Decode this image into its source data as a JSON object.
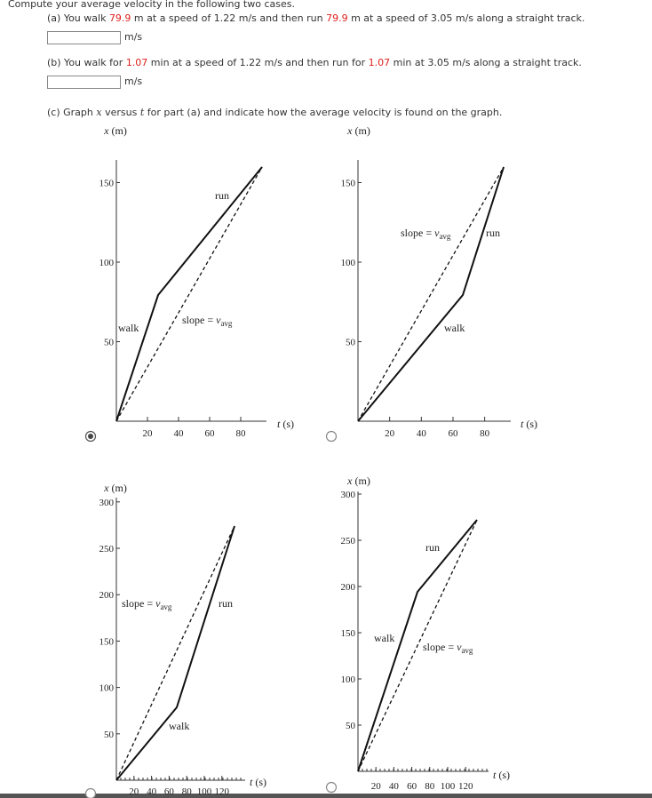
{
  "prompt": "Compute your average velocity in the following two cases.",
  "parts": [
    {
      "sentence": [
        {
          "text": "(a) You walk ",
          "highlight": false
        },
        {
          "text": 79.9,
          "highlight": true
        },
        {
          "text": " m at a speed of 1.22 m/s and then run ",
          "highlight": false
        },
        {
          "text": 79.9,
          "highlight": true
        },
        {
          "text": " m at a speed of 3.05 m/s along a straight track.",
          "highlight": false
        }
      ],
      "unit": "m/s"
    },
    {
      "sentence": [
        {
          "text": "(b) You walk for ",
          "highlight": false
        },
        {
          "text": 1.07,
          "highlight": true
        },
        {
          "text": " min at a speed of 1.22 m/s and then run for ",
          "highlight": false
        },
        {
          "text": 1.07,
          "highlight": true
        },
        {
          "text": " min at 3.05 m/s along a straight track.",
          "highlight": false
        }
      ],
      "unit": "m/s"
    }
  ],
  "part_c": {
    "sentence": [
      {
        "text": "(c) Graph ",
        "italic": false
      },
      {
        "text": "x",
        "italic": true
      },
      {
        "text": " versus ",
        "italic": false
      },
      {
        "text": "t",
        "italic": true
      },
      {
        "text": " for part (a) and indicate how the average velocity is found on the graph.",
        "italic": false
      }
    ]
  },
  "options": [
    {
      "selected": true,
      "y_axis": {
        "var": "x",
        "unit": "(m)"
      },
      "x_axis": {
        "var": "t",
        "unit": "(s)"
      },
      "yticks": [
        50,
        100,
        150
      ],
      "xticks": [
        20,
        40,
        60,
        80
      ],
      "walk_label": "walk",
      "run_label": "run",
      "slope_label": {
        "text": "slope = ",
        "var": "v",
        "sub": "avg"
      }
    },
    {
      "selected": false,
      "y_axis": {
        "var": "x",
        "unit": "(m)"
      },
      "x_axis": {
        "var": "t",
        "unit": "(s)"
      },
      "yticks": [
        50,
        100,
        150
      ],
      "xticks": [
        20,
        40,
        60,
        80
      ],
      "walk_label": "walk",
      "run_label": "run",
      "slope_label": {
        "text": "slope = ",
        "var": "v",
        "sub": "avg"
      }
    },
    {
      "selected": false,
      "y_axis": {
        "var": "x",
        "unit": "(m)"
      },
      "x_axis": {
        "var": "t",
        "unit": "(s)"
      },
      "yticks": [
        50,
        100,
        150,
        200,
        250,
        300
      ],
      "xticks": [
        20,
        40,
        60,
        80,
        100,
        120
      ],
      "walk_label": "walk",
      "run_label": "run",
      "slope_label": {
        "text": "slope = ",
        "var": "v",
        "sub": "avg"
      }
    },
    {
      "selected": false,
      "y_axis": {
        "var": "x",
        "unit": "(m)"
      },
      "x_axis": {
        "var": "t",
        "unit": "(s)"
      },
      "yticks": [
        50,
        100,
        150,
        200,
        250,
        300
      ],
      "xticks": [
        20,
        40,
        60,
        80,
        100,
        120
      ],
      "walk_label": "walk",
      "run_label": "run",
      "slope_label": {
        "text": "slope = ",
        "var": "v",
        "sub": "avg"
      }
    }
  ]
}
